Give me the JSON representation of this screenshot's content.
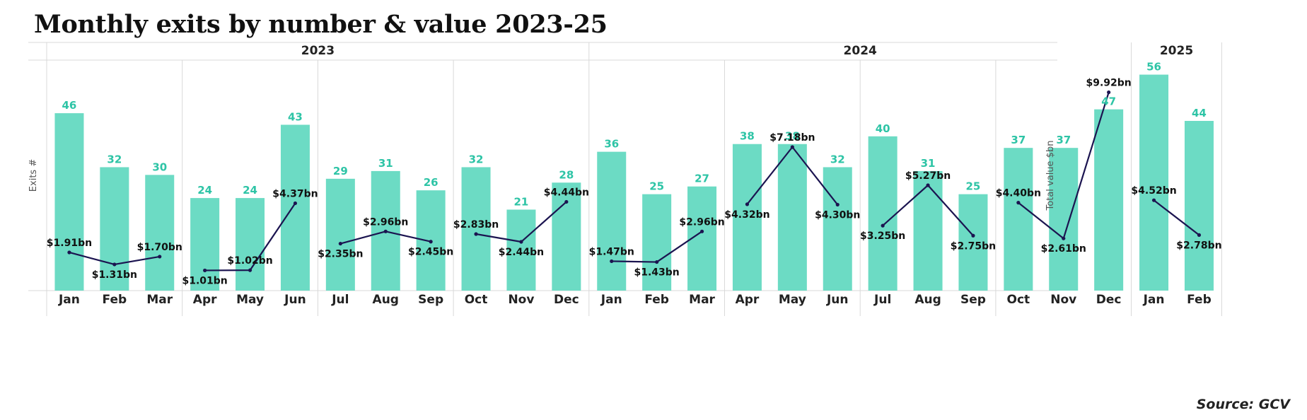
{
  "title": "Monthly exits by number & value 2023-25",
  "source": "Source: GCV",
  "colors": {
    "bar": "#6cdbc4",
    "bar_label": "#2ec4a6",
    "line": "#1b1450",
    "grid": "#d9d9d9"
  },
  "chart_data": {
    "type": "bar",
    "title": "Monthly exits by number & value 2023-25",
    "ylabel": "Exits #",
    "y2label": "Total value $bn",
    "ylim": [
      0,
      60
    ],
    "y2lim": [
      0,
      11
    ],
    "grid": true,
    "years": [
      {
        "label": "2023",
        "months": 12
      },
      {
        "label": "2024",
        "months": 12
      },
      {
        "label": "2025",
        "months": 2
      }
    ],
    "categories": [
      "Jan",
      "Feb",
      "Mar",
      "Apr",
      "May",
      "Jun",
      "Jul",
      "Aug",
      "Sep",
      "Oct",
      "Nov",
      "Dec",
      "Jan",
      "Feb",
      "Mar",
      "Apr",
      "May",
      "Jun",
      "Jul",
      "Aug",
      "Sep",
      "Oct",
      "Nov",
      "Dec",
      "Jan",
      "Feb"
    ],
    "series": [
      {
        "name": "Exits #",
        "type": "bar",
        "values": [
          46,
          32,
          30,
          24,
          24,
          43,
          29,
          31,
          26,
          32,
          21,
          28,
          36,
          25,
          27,
          38,
          38,
          32,
          40,
          31,
          25,
          37,
          37,
          47,
          56,
          44
        ],
        "labels": [
          "46",
          "32",
          "30",
          "24",
          "24",
          "43",
          "29",
          "31",
          "26",
          "32",
          "21",
          "28",
          "36",
          "25",
          "27",
          "38",
          "38",
          "32",
          "40",
          "31",
          "25",
          "37",
          "37",
          "47",
          "56",
          "44"
        ]
      },
      {
        "name": "Total value $bn",
        "type": "line",
        "values": [
          1.91,
          1.31,
          1.7,
          1.01,
          1.02,
          4.37,
          2.35,
          2.96,
          2.45,
          2.83,
          2.44,
          4.44,
          1.47,
          1.43,
          2.96,
          4.32,
          7.18,
          4.3,
          3.25,
          5.27,
          2.75,
          4.4,
          2.61,
          9.92,
          4.52,
          2.78
        ],
        "labels": [
          "$1.91bn",
          "$1.31bn",
          "$1.70bn",
          "$1.01bn",
          "$1.02bn",
          "$4.37bn",
          "$2.35bn",
          "$2.96bn",
          "$2.45bn",
          "$2.83bn",
          "$2.44bn",
          "$4.44bn",
          "$1.47bn",
          "$1.43bn",
          "$2.96bn",
          "$4.32bn",
          "$7.18bn",
          "$4.30bn",
          "$3.25bn",
          "$5.27bn",
          "$2.75bn",
          "$4.40bn",
          "$2.61bn",
          "$9.92bn",
          "$4.52bn",
          "$2.78bn"
        ],
        "segments": [
          [
            0,
            2
          ],
          [
            3,
            5
          ],
          [
            6,
            8
          ],
          [
            9,
            11
          ],
          [
            12,
            14
          ],
          [
            15,
            17
          ],
          [
            18,
            20
          ],
          [
            21,
            23
          ],
          [
            24,
            25
          ]
        ]
      }
    ]
  }
}
